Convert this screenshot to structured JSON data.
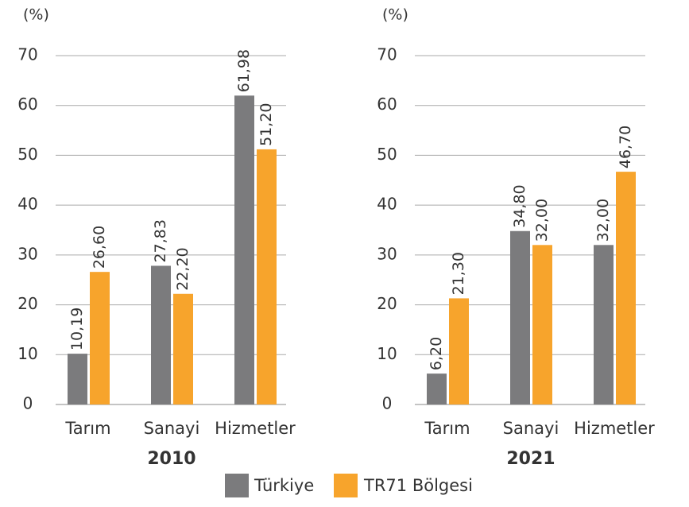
{
  "chart_data": [
    {
      "type": "bar",
      "title": "2010",
      "ylabel": "(%)",
      "categories": [
        "Tarım",
        "Sanayi",
        "Hizmetler"
      ],
      "series": [
        {
          "name": "Türkiye",
          "color": "#7b7b7d",
          "values": [
            10.19,
            27.83,
            61.98
          ],
          "value_labels": [
            "10,19",
            "27,83",
            "61,98"
          ]
        },
        {
          "name": "TR71 Bölgesi",
          "color": "#f7a42c",
          "values": [
            26.6,
            22.2,
            51.2
          ],
          "value_labels": [
            "26,60",
            "22,20",
            "51,20"
          ]
        }
      ],
      "ylim": [
        0,
        70
      ],
      "yticks": [
        0,
        10,
        20,
        30,
        40,
        50,
        60,
        70
      ],
      "grid": true
    },
    {
      "type": "bar",
      "title": "2021",
      "ylabel": "(%)",
      "categories": [
        "Tarım",
        "Sanayi",
        "Hizmetler"
      ],
      "series": [
        {
          "color": "#7b7b7d",
          "values": [
            6.2,
            34.8,
            32.0
          ],
          "value_labels": [
            "6,20",
            "34,80",
            "32,00"
          ]
        },
        {
          "color": "#f7a42c",
          "values": [
            21.3,
            32.0,
            46.7
          ],
          "value_labels": [
            "21,30",
            "32,00",
            "46,70"
          ]
        }
      ],
      "ylim": [
        0,
        70
      ],
      "yticks": [
        0,
        10,
        20,
        30,
        40,
        50,
        60,
        70
      ],
      "grid": true
    }
  ]
}
